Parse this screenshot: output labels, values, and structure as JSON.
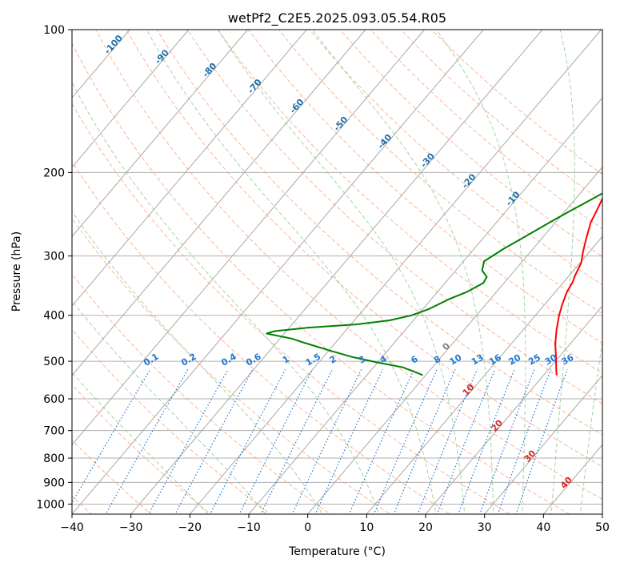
{
  "chart_data": {
    "type": "line",
    "title": "wetPf2_C2E5.2025.093.05.54.R05",
    "xlabel": "Temperature (°C)",
    "ylabel": "Pressure (hPa)",
    "xlim": [
      -40,
      50
    ],
    "ylim": [
      1050,
      100
    ],
    "y_scale": "log",
    "grid": true,
    "x_ticks": [
      -40,
      -30,
      -20,
      -10,
      0,
      10,
      20,
      30,
      40,
      50
    ],
    "y_ticks": [
      100,
      200,
      300,
      400,
      500,
      600,
      700,
      800,
      900,
      1000
    ],
    "series": [
      {
        "color": "#ff0000",
        "points": [
          [
            22.2,
            535
          ],
          [
            21,
            515
          ],
          [
            19.5,
            490
          ],
          [
            17.5,
            460
          ],
          [
            15.7,
            430
          ],
          [
            14,
            400
          ],
          [
            13,
            380
          ],
          [
            12,
            358
          ],
          [
            11.5,
            340
          ],
          [
            11,
            330
          ],
          [
            10.2,
            310
          ],
          [
            9,
            295
          ],
          [
            7.5,
            275
          ],
          [
            6,
            255
          ],
          [
            5,
            235
          ],
          [
            4,
            218
          ],
          [
            2.5,
            200
          ],
          [
            0.3,
            180
          ],
          [
            -1,
            165
          ],
          [
            -0.5,
            150
          ],
          [
            -0.8,
            135
          ],
          [
            -1.5,
            125
          ],
          [
            -2.5,
            117
          ],
          [
            -3.5,
            110
          ],
          [
            -4,
            105
          ],
          [
            -3,
            100
          ]
        ]
      },
      {
        "color": "#008000",
        "points": [
          [
            -0.5,
            535
          ],
          [
            -2,
            528
          ],
          [
            -5,
            515
          ],
          [
            -10,
            503
          ],
          [
            -15,
            490
          ],
          [
            -20,
            474
          ],
          [
            -25,
            458
          ],
          [
            -28,
            448
          ],
          [
            -33,
            437
          ],
          [
            -32,
            432
          ],
          [
            -27,
            425
          ],
          [
            -19,
            418
          ],
          [
            -14,
            410
          ],
          [
            -11,
            400
          ],
          [
            -9,
            388
          ],
          [
            -7,
            370
          ],
          [
            -5,
            357
          ],
          [
            -3.5,
            342
          ],
          [
            -3.8,
            332
          ],
          [
            -5.5,
            322
          ],
          [
            -6.5,
            308
          ],
          [
            -5,
            290
          ],
          [
            -3,
            272
          ],
          [
            -1,
            255
          ],
          [
            1,
            240
          ],
          [
            2.5,
            230
          ],
          [
            4,
            220
          ],
          [
            4,
            212
          ],
          [
            3,
            203
          ],
          [
            1.5,
            190
          ],
          [
            -0.5,
            178
          ],
          [
            -3,
            167
          ],
          [
            -4.5,
            155
          ],
          [
            -4,
            143
          ],
          [
            -2,
            134
          ],
          [
            -1.5,
            127
          ],
          [
            -2.5,
            122
          ],
          [
            -3,
            117
          ],
          [
            -3.5,
            111
          ],
          [
            -3.8,
            106
          ],
          [
            -3,
            103
          ],
          [
            -1.5,
            100
          ]
        ]
      }
    ],
    "dry_adiabats_c": [
      -90,
      -80,
      -70,
      -60,
      -50,
      -40,
      -30,
      -20,
      -10,
      0,
      10,
      20,
      30,
      40,
      50,
      60,
      70,
      80,
      90,
      100,
      110,
      120,
      130,
      140,
      150,
      160
    ],
    "moist_adiabats_c": [
      -20,
      -10,
      0,
      10,
      20,
      25,
      30,
      35,
      40,
      45
    ],
    "mixing_ratio_lines": [
      "0.1",
      "0.2",
      "0.4",
      "0.6",
      "1",
      "1.5",
      "2",
      "3",
      "4",
      "6",
      "8",
      "10",
      "13",
      "16",
      "20",
      "25",
      "30",
      "36"
    ],
    "isotherm_labels": [
      "-100",
      "-90",
      "-80",
      "-70",
      "-60",
      "-50",
      "-40",
      "-30",
      "-20",
      "-10",
      "0",
      "10",
      "20",
      "30",
      "40"
    ],
    "colors": {
      "temperature": "#ff0000",
      "dewpoint": "#008000",
      "dry_adiabat": "#ffa07a",
      "moist_adiabat": "#90c890",
      "mixing_ratio": "#1f77d4",
      "isotherm_neg": "#1f6fa8",
      "isotherm_pos": "#d62728",
      "isotherm_zero": "#7f7f7f"
    }
  }
}
